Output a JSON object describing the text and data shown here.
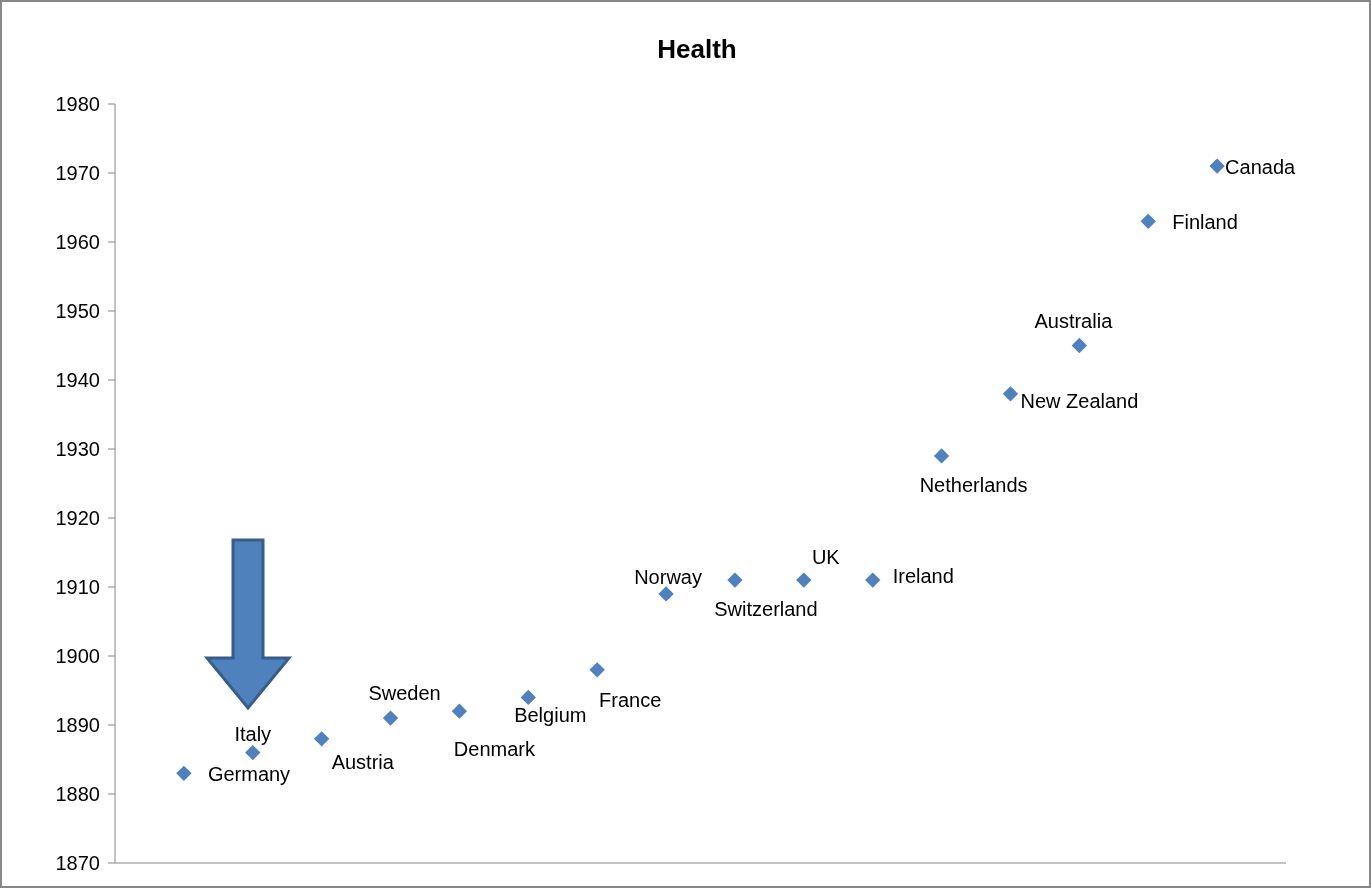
{
  "chart_data": {
    "type": "scatter",
    "title": "Health",
    "categories": [
      null,
      null,
      null,
      null,
      null,
      null,
      null,
      null,
      null,
      null,
      null,
      null,
      null,
      null,
      null,
      null
    ],
    "values": [
      1883,
      1886,
      1888,
      1891,
      1892,
      1894,
      1898,
      1909,
      1911,
      1911,
      1911,
      1929,
      1938,
      1945,
      1963,
      1971
    ],
    "color": "#4f81bd",
    "marker": "diamond",
    "ylim": [
      1870,
      1980
    ],
    "yticks": [
      1870,
      1880,
      1890,
      1900,
      1910,
      1920,
      1930,
      1940,
      1950,
      1960,
      1970,
      1980
    ],
    "annotations": [
      "Germany",
      "Italy",
      "Austria",
      "Sweden",
      "Denmark",
      "Belgium",
      "France",
      "Norway",
      "Switzerland",
      "UK",
      "Ireland",
      "Netherlands",
      "New Zealand",
      "Australia",
      "Finland",
      "Canada"
    ]
  }
}
